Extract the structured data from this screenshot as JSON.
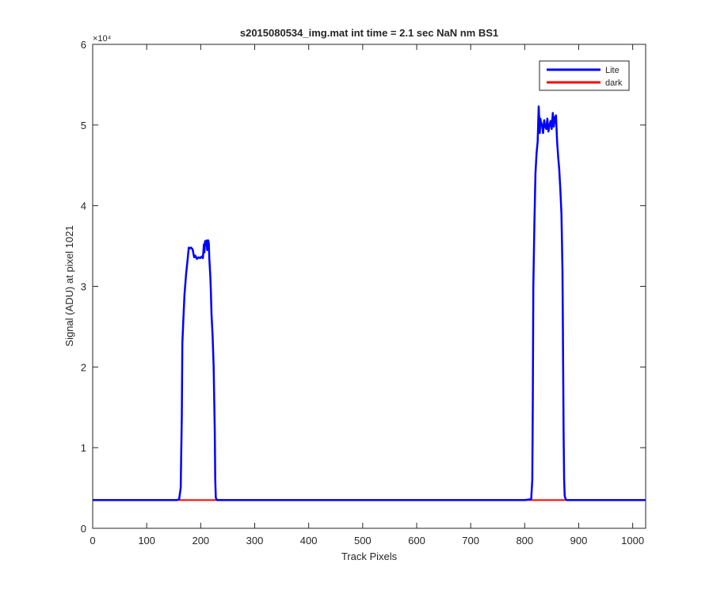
{
  "chart_data": {
    "type": "line",
    "title": "s2015080534_img.mat int time = 2.1 sec  NaN nm BS1",
    "xlabel": "Track Pixels",
    "ylabel": "Signal (ADU) at pixel 1021",
    "xlim": [
      0,
      1024
    ],
    "ylim": [
      0,
      60000
    ],
    "x_ticks": [
      0,
      100,
      200,
      300,
      400,
      500,
      600,
      700,
      800,
      900,
      1000
    ],
    "y_ticks": [
      0,
      10000,
      20000,
      30000,
      40000,
      50000,
      60000
    ],
    "x_tick_labels": [
      "0",
      "100",
      "200",
      "300",
      "400",
      "500",
      "600",
      "700",
      "800",
      "900",
      "1000"
    ],
    "y_tick_labels": [
      "0",
      "1",
      "2",
      "3",
      "4",
      "5",
      "6"
    ],
    "y_exponent_label": "×10⁴",
    "grid": false,
    "legend_position": "top-right",
    "series": [
      {
        "name": "Lite",
        "color": "#0000ff",
        "x": [
          0,
          155,
          160,
          163,
          165,
          166,
          168,
          170,
          173,
          176,
          178,
          180,
          182,
          185,
          188,
          190,
          193,
          196,
          199,
          202,
          204,
          206,
          207,
          208,
          210,
          211,
          212,
          214,
          215,
          216,
          218,
          219,
          220,
          222,
          224,
          226,
          227,
          228,
          230,
          240,
          300,
          400,
          500,
          600,
          700,
          800,
          812,
          814,
          815,
          816,
          818,
          820,
          822,
          824,
          825,
          826,
          828,
          829,
          830,
          832,
          834,
          836,
          838,
          840,
          842,
          844,
          846,
          848,
          850,
          852,
          854,
          856,
          857,
          858,
          860,
          862,
          864,
          866,
          868,
          870,
          872,
          873,
          874,
          876,
          878,
          880,
          890,
          1024
        ],
        "y": [
          3500,
          3500,
          3600,
          5000,
          14000,
          23000,
          26000,
          29000,
          31500,
          33500,
          34800,
          34700,
          34800,
          34600,
          33600,
          33800,
          33400,
          33600,
          33500,
          33700,
          33500,
          35200,
          34200,
          35600,
          35100,
          35700,
          34500,
          35700,
          35300,
          33500,
          31000,
          29000,
          26500,
          24000,
          20000,
          12000,
          6000,
          3800,
          3500,
          3500,
          3500,
          3500,
          3500,
          3500,
          3500,
          3500,
          3600,
          6000,
          15000,
          30000,
          38000,
          44000,
          46500,
          48000,
          50500,
          52300,
          49000,
          50800,
          50400,
          50000,
          49000,
          50600,
          49800,
          49500,
          50800,
          49200,
          50000,
          50500,
          49500,
          51500,
          49800,
          51000,
          50500,
          51200,
          48000,
          46000,
          44500,
          42000,
          39000,
          32000,
          12000,
          6000,
          4000,
          3600,
          3500,
          3500,
          3500,
          3500
        ]
      },
      {
        "name": "dark",
        "color": "#ff0000",
        "x": [
          0,
          1024
        ],
        "y": [
          3500,
          3500
        ]
      }
    ]
  }
}
